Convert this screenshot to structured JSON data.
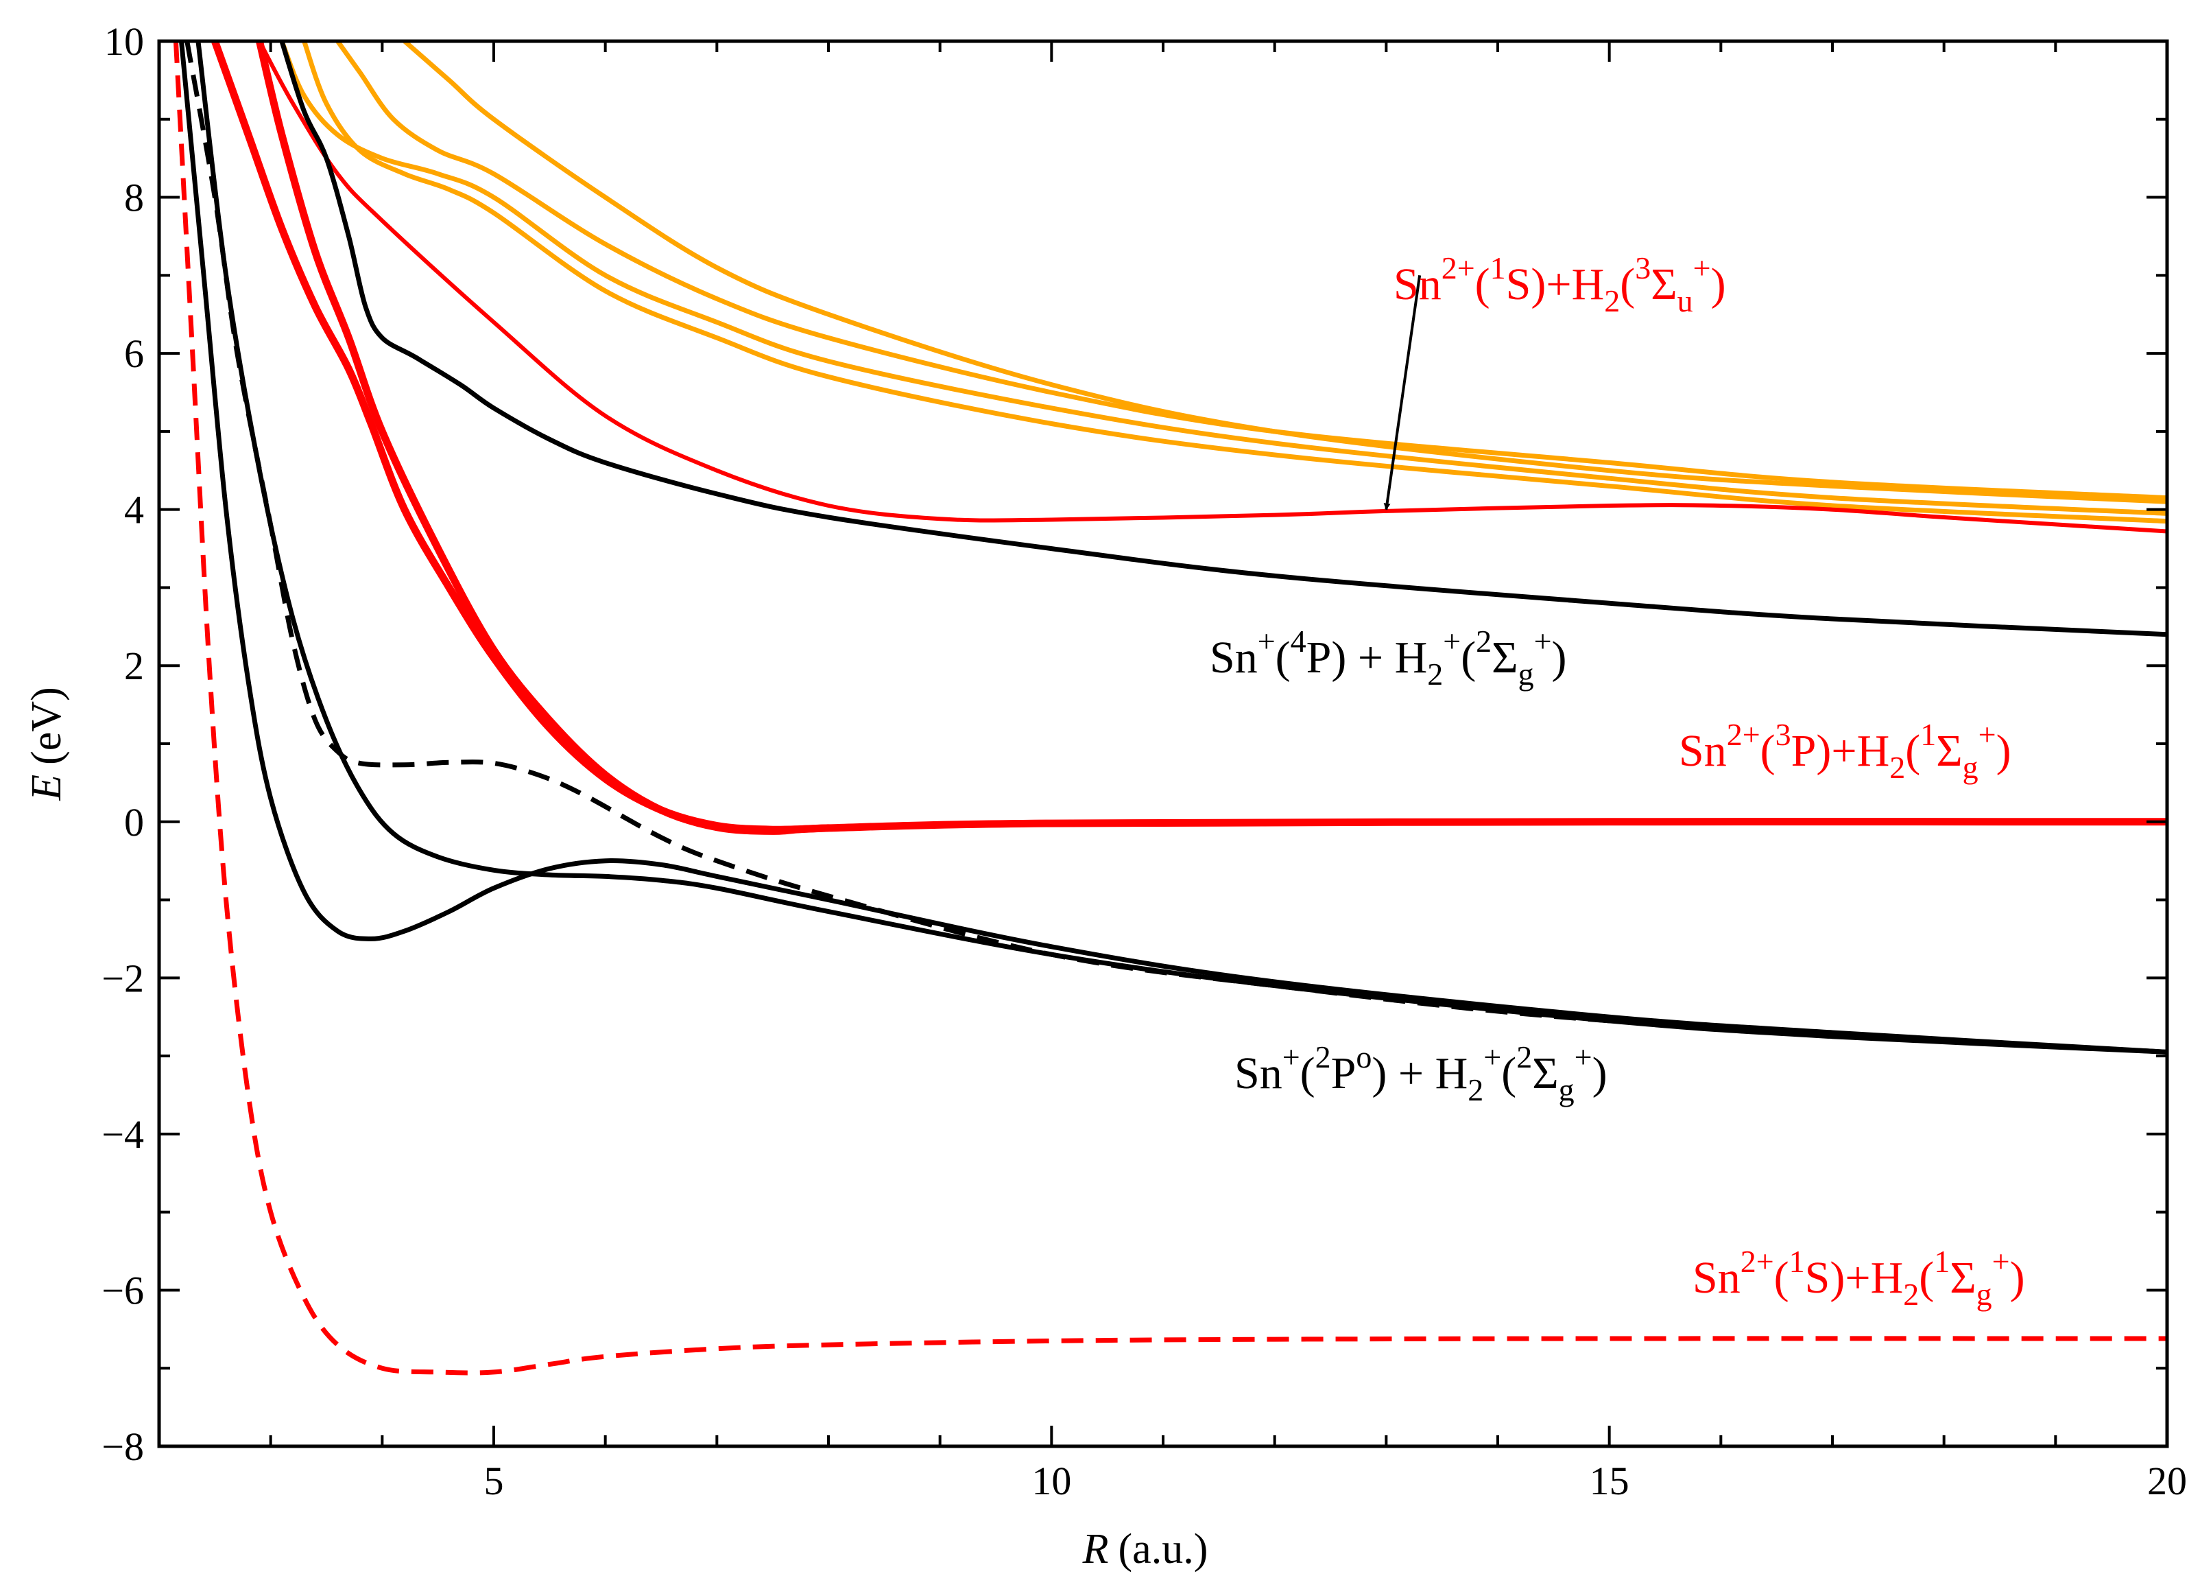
{
  "chart_data": {
    "type": "line",
    "title": "",
    "xlabel": "R",
    "xlabel_unit": "(a.u.)",
    "ylabel": "E",
    "ylabel_unit": "(eV)",
    "xlim": [
      2.0,
      20.0
    ],
    "ylim": [
      -8,
      10
    ],
    "xticks": [
      5,
      10,
      15,
      20
    ],
    "xtick_labels": [
      "5",
      "10",
      "15",
      "20"
    ],
    "yticks": [
      -8,
      -6,
      -4,
      -2,
      0,
      2,
      4,
      6,
      8,
      10
    ],
    "ytick_labels": [
      "−8",
      "−6",
      "−4",
      "−2",
      "0",
      "2",
      "4",
      "6",
      "8",
      "10"
    ],
    "colors": {
      "black": "#000000",
      "red": "#ff0000",
      "orange": "#ffa500"
    },
    "series": [
      {
        "name": "orange-1",
        "color": "orange",
        "dash": false,
        "width": 7,
        "x": [
          3.3,
          3.5,
          3.8,
          4.2,
          4.6,
          5.0,
          6.0,
          7.0,
          8.0,
          10.0,
          12.0,
          15.0,
          17.0,
          20.0
        ],
        "y": [
          10.0,
          9.2,
          8.6,
          8.3,
          8.1,
          7.8,
          6.8,
          6.2,
          5.7,
          5.1,
          4.7,
          4.3,
          4.05,
          3.85
        ]
      },
      {
        "name": "orange-2",
        "color": "orange",
        "dash": false,
        "width": 7,
        "x": [
          3.1,
          3.3,
          3.6,
          4.0,
          4.5,
          5.0,
          6.0,
          7.0,
          8.0,
          10.0,
          12.0,
          15.0,
          17.0,
          20.0
        ],
        "y": [
          10.0,
          9.3,
          8.8,
          8.5,
          8.3,
          8.0,
          7.0,
          6.4,
          5.9,
          5.3,
          4.85,
          4.4,
          4.15,
          3.95
        ]
      },
      {
        "name": "orange-3",
        "color": "orange",
        "dash": false,
        "width": 7,
        "x": [
          3.6,
          3.8,
          4.1,
          4.5,
          5.0,
          6.0,
          7.0,
          8.0,
          10.0,
          12.0,
          15.0,
          17.0,
          20.0
        ],
        "y": [
          10.0,
          9.6,
          9.0,
          8.6,
          8.3,
          7.4,
          6.7,
          6.2,
          5.5,
          5.0,
          4.6,
          4.35,
          4.15
        ]
      },
      {
        "name": "orange-4",
        "color": "orange",
        "dash": false,
        "width": 7,
        "x": [
          4.2,
          4.6,
          5.0,
          6.0,
          7.0,
          8.0,
          10.0,
          12.0,
          15.0,
          17.0,
          20.0
        ],
        "y": [
          10.0,
          9.5,
          9.0,
          8.0,
          7.1,
          6.5,
          5.6,
          5.0,
          4.5,
          4.3,
          4.1
        ]
      },
      {
        "name": "red-dashed-ground",
        "color": "red",
        "dash": true,
        "width": 7,
        "x": [
          2.15,
          2.3,
          2.45,
          2.6,
          2.8,
          3.0,
          3.3,
          3.6,
          4.0,
          4.5,
          5.0,
          5.5,
          6.0,
          7.0,
          8.0,
          10.0,
          12.0,
          15.0,
          20.0
        ],
        "y": [
          10.0,
          6.0,
          2.0,
          -1.0,
          -3.5,
          -5.0,
          -6.1,
          -6.7,
          -7.0,
          -7.05,
          -7.05,
          -6.95,
          -6.85,
          -6.75,
          -6.7,
          -6.65,
          -6.63,
          -6.62,
          -6.62
        ]
      },
      {
        "name": "red-thick-a",
        "color": "red",
        "dash": false,
        "width": 11,
        "x": [
          2.9,
          3.1,
          3.4,
          3.7,
          4.0,
          4.5,
          5.0,
          5.5,
          6.0,
          6.5,
          7.0,
          7.5,
          8.0,
          10.0,
          15.0,
          20.0
        ],
        "y": [
          10.0,
          8.8,
          7.3,
          6.2,
          5.0,
          3.5,
          2.2,
          1.3,
          0.6,
          0.15,
          -0.07,
          -0.12,
          -0.08,
          -0.02,
          0.0,
          0.0
        ]
      },
      {
        "name": "red-thick-b",
        "color": "red",
        "dash": false,
        "width": 11,
        "x": [
          2.5,
          2.8,
          3.1,
          3.4,
          3.7,
          3.9,
          4.2,
          4.6,
          5.0,
          5.5,
          6.0,
          6.5,
          7.0,
          7.5,
          8.0
        ],
        "y": [
          10.0,
          8.8,
          7.6,
          6.6,
          5.8,
          5.1,
          4.0,
          3.0,
          2.1,
          1.2,
          0.55,
          0.15,
          -0.05,
          -0.1,
          -0.08
        ]
      },
      {
        "name": "red-thin-triplet",
        "color": "red",
        "dash": false,
        "width": 6,
        "x": [
          2.9,
          3.2,
          3.6,
          4.0,
          5.0,
          6.0,
          7.0,
          8.0,
          9.0,
          10.0,
          12.0,
          13.0,
          15.0,
          16.0,
          17.0,
          18.0,
          20.0
        ],
        "y": [
          10.0,
          9.2,
          8.3,
          7.7,
          6.4,
          5.2,
          4.5,
          4.05,
          3.88,
          3.87,
          3.93,
          3.98,
          4.05,
          4.05,
          4.0,
          3.9,
          3.72
        ]
      },
      {
        "name": "black-1",
        "color": "black",
        "dash": false,
        "width": 7,
        "x": [
          2.2,
          2.4,
          2.6,
          2.8,
          3.0,
          3.3,
          3.6,
          3.9,
          4.2,
          4.6,
          5.0,
          5.5,
          6.0,
          6.5,
          7.0,
          8.0,
          10.0,
          12.0,
          15.0,
          17.0,
          20.0
        ],
        "y": [
          10.0,
          7.0,
          4.0,
          1.8,
          0.3,
          -0.9,
          -1.4,
          -1.5,
          -1.4,
          -1.15,
          -0.85,
          -0.6,
          -0.5,
          -0.55,
          -0.7,
          -1.0,
          -1.6,
          -2.05,
          -2.5,
          -2.7,
          -2.95
        ]
      },
      {
        "name": "black-2",
        "color": "black",
        "dash": false,
        "width": 7,
        "x": [
          2.35,
          2.6,
          2.9,
          3.2,
          3.5,
          3.8,
          4.1,
          4.5,
          5.0,
          5.5,
          6.0,
          6.5,
          7.0,
          8.0,
          10.0,
          12.0,
          15.0,
          17.0,
          20.0
        ],
        "y": [
          10.0,
          7.0,
          4.5,
          2.6,
          1.3,
          0.4,
          -0.15,
          -0.45,
          -0.62,
          -0.68,
          -0.7,
          -0.75,
          -0.85,
          -1.15,
          -1.7,
          -2.1,
          -2.55,
          -2.75,
          -2.95
        ]
      },
      {
        "name": "black-dashed",
        "color": "black",
        "dash": true,
        "width": 7,
        "x": [
          2.25,
          2.5,
          2.7,
          3.0,
          3.2,
          3.4,
          3.6,
          3.8,
          4.2,
          4.6,
          5.0,
          5.4,
          5.8,
          6.5,
          7.0,
          8.0,
          10.0,
          12.0,
          15.0,
          20.0
        ],
        "y": [
          10.0,
          8.0,
          6.0,
          3.8,
          2.3,
          1.3,
          0.9,
          0.75,
          0.73,
          0.76,
          0.75,
          0.6,
          0.35,
          -0.2,
          -0.5,
          -0.95,
          -1.7,
          -2.1,
          -2.55,
          -2.95
        ]
      },
      {
        "name": "black-upper",
        "color": "black",
        "dash": false,
        "width": 7,
        "x": [
          3.1,
          3.3,
          3.5,
          3.7,
          3.85,
          4.0,
          4.3,
          4.7,
          5.0,
          5.5,
          6.0,
          7.0,
          8.0,
          10.0,
          12.0,
          15.0,
          17.0,
          20.0
        ],
        "y": [
          10.0,
          9.1,
          8.5,
          7.5,
          6.6,
          6.2,
          5.95,
          5.6,
          5.3,
          4.9,
          4.6,
          4.2,
          3.9,
          3.5,
          3.15,
          2.8,
          2.6,
          2.4
        ]
      }
    ],
    "annotations": [
      {
        "id": "sn2p-1s-h2-3sigu",
        "color": "red",
        "parts": [
          "Sn",
          "2+",
          "(",
          "1",
          "S)+H",
          "2",
          "(",
          "3",
          "Σ",
          "u",
          "+",
          ")"
        ]
      },
      {
        "id": "snp-4p-h2p-2sigg",
        "color": "black",
        "parts": [
          "Sn",
          "+",
          "(",
          "4",
          "P) + H",
          "2",
          "+",
          "(",
          "2",
          "Σ",
          "g",
          "+",
          ")"
        ]
      },
      {
        "id": "sn2p-3p-h2-1sigg",
        "color": "red",
        "parts": [
          "Sn",
          "2+",
          "(",
          "3",
          "P)+H",
          "2",
          "(",
          "1",
          "Σ",
          "g",
          "+",
          ")"
        ]
      },
      {
        "id": "snp-2po-h2p-2sigg",
        "color": "black",
        "parts": [
          "Sn",
          "+",
          "(",
          "2",
          "P",
          "o",
          ") + H",
          "2",
          "+",
          "(",
          "2",
          "Σ",
          "g",
          "+",
          ")"
        ]
      },
      {
        "id": "sn2p-1s-h2-1sigg",
        "color": "red",
        "parts": [
          "Sn",
          "2+",
          "(",
          "1",
          "S)+H",
          "2",
          "(",
          "1",
          "Σ",
          "g",
          "+",
          ")"
        ]
      }
    ],
    "arrow": {
      "from": [
        13.3,
        7.0
      ],
      "to": [
        13.0,
        4.0
      ],
      "color": "black"
    }
  }
}
